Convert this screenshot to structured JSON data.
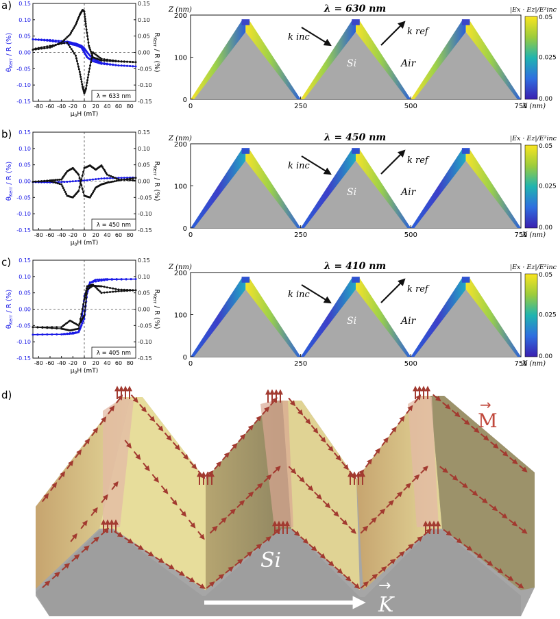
{
  "panel_labels": [
    "a)",
    "b)",
    "c)",
    "d)"
  ],
  "colors": {
    "blue": "#1a1ae6",
    "black": "#111111",
    "si_gray": "#a7a7a7",
    "arrow_red": "#b0443a"
  },
  "kerr_plots": {
    "left_axis_label": "θKerr / R (%)",
    "left_axis_main": "θ",
    "left_axis_sub": "Kerr",
    "left_axis_rest": " / R (%)",
    "right_axis_main": "R",
    "right_axis_sub": "Kerr",
    "right_axis_rest": " / R (%)",
    "x_label_main": "μ",
    "x_label_sub": "0",
    "x_label_rest": "H (mT)",
    "y_ticks": [
      "0.15",
      "0.10",
      "0.05",
      "0.00",
      "-0.05",
      "-0.10",
      "-0.15"
    ],
    "x_ticks": [
      "-80",
      "-60",
      "-40",
      "-20",
      "0",
      "20",
      "40",
      "60",
      "80"
    ],
    "wavelength_labels": [
      "λ = 633 nm",
      "λ = 450 nm",
      "λ = 405 nm"
    ]
  },
  "chart_data": [
    {
      "type": "line",
      "panel": "a",
      "title": "λ = 633 nm",
      "xlim": [
        -90,
        90
      ],
      "ylim": [
        -0.15,
        0.15
      ],
      "series": [
        {
          "name": "θKerr/R (blue, up sweep)",
          "color": "#1a1ae6",
          "x": [
            -90,
            -60,
            -30,
            -15,
            -5,
            0,
            5,
            15,
            30,
            60,
            90
          ],
          "y": [
            0.04,
            0.035,
            0.028,
            0.022,
            0.015,
            0.0,
            -0.015,
            -0.027,
            -0.035,
            -0.04,
            -0.043
          ]
        },
        {
          "name": "θKerr/R (blue, down sweep)",
          "color": "#1a1ae6",
          "x": [
            90,
            60,
            30,
            15,
            5,
            0,
            -5,
            -15,
            -30,
            -60,
            -90
          ],
          "y": [
            -0.043,
            -0.04,
            -0.032,
            -0.02,
            0.0,
            0.012,
            0.02,
            0.027,
            0.033,
            0.038,
            0.04
          ]
        },
        {
          "name": "RKerr/R (black, up sweep)",
          "color": "#111111",
          "x": [
            -90,
            -60,
            -40,
            -25,
            -15,
            -8,
            -3,
            0,
            3,
            8,
            15,
            30,
            60,
            90
          ],
          "y": [
            0.008,
            0.015,
            0.03,
            0.055,
            0.085,
            0.115,
            0.13,
            0.125,
            0.08,
            0.02,
            -0.015,
            -0.025,
            -0.028,
            -0.03
          ]
        },
        {
          "name": "RKerr/R (black, down sweep)",
          "color": "#111111",
          "x": [
            90,
            60,
            30,
            15,
            8,
            3,
            0,
            -3,
            -8,
            -15,
            -30,
            -60,
            -90
          ],
          "y": [
            -0.03,
            -0.027,
            -0.02,
            0.0,
            -0.06,
            -0.11,
            -0.125,
            -0.105,
            -0.06,
            -0.01,
            0.03,
            0.02,
            0.01
          ]
        }
      ]
    },
    {
      "type": "line",
      "panel": "b",
      "title": "λ = 450 nm",
      "xlim": [
        -90,
        90
      ],
      "ylim": [
        -0.15,
        0.15
      ],
      "series": [
        {
          "name": "θKerr/R (blue)",
          "color": "#1a1ae6",
          "x": [
            -90,
            -60,
            -30,
            0,
            30,
            60,
            90
          ],
          "y": [
            -0.003,
            -0.004,
            -0.002,
            0.002,
            0.008,
            0.01,
            0.011
          ]
        },
        {
          "name": "RKerr/R (black, up sweep)",
          "color": "#111111",
          "x": [
            -90,
            -60,
            -40,
            -30,
            -20,
            -10,
            0,
            10,
            20,
            30,
            40,
            60,
            90
          ],
          "y": [
            -0.002,
            0.0,
            -0.01,
            -0.045,
            -0.05,
            -0.03,
            0.04,
            0.048,
            0.035,
            0.048,
            0.02,
            0.005,
            0.002
          ]
        },
        {
          "name": "RKerr/R (black, down sweep)",
          "color": "#111111",
          "x": [
            90,
            60,
            40,
            30,
            20,
            10,
            0,
            -10,
            -20,
            -30,
            -40,
            -60,
            -90
          ],
          "y": [
            0.01,
            0.002,
            -0.005,
            -0.01,
            -0.02,
            -0.05,
            -0.045,
            0.02,
            0.04,
            0.03,
            0.005,
            0.002,
            -0.002
          ]
        }
      ]
    },
    {
      "type": "line",
      "panel": "c",
      "title": "λ = 405 nm",
      "xlim": [
        -90,
        90
      ],
      "ylim": [
        -0.15,
        0.15
      ],
      "series": [
        {
          "name": "θKerr/R (blue, up sweep)",
          "color": "#1a1ae6",
          "x": [
            -90,
            -40,
            -10,
            0,
            5,
            10,
            20,
            40,
            90
          ],
          "y": [
            -0.078,
            -0.077,
            -0.07,
            -0.03,
            0.05,
            0.08,
            0.09,
            0.092,
            0.092
          ]
        },
        {
          "name": "θKerr/R (blue, down sweep)",
          "color": "#1a1ae6",
          "x": [
            90,
            40,
            10,
            0,
            -5,
            -10,
            -20,
            -40,
            -90
          ],
          "y": [
            0.092,
            0.09,
            0.082,
            0.04,
            -0.05,
            -0.07,
            -0.075,
            -0.077,
            -0.078
          ]
        },
        {
          "name": "RKerr/R (black, up sweep)",
          "color": "#111111",
          "x": [
            -90,
            -40,
            -25,
            -10,
            0,
            5,
            15,
            30,
            60,
            90
          ],
          "y": [
            -0.055,
            -0.06,
            -0.065,
            -0.06,
            0.03,
            0.07,
            0.075,
            0.05,
            0.055,
            0.058
          ]
        },
        {
          "name": "RKerr/R (black, down sweep)",
          "color": "#111111",
          "x": [
            90,
            60,
            30,
            15,
            5,
            0,
            -10,
            -25,
            -40,
            -90
          ],
          "y": [
            0.058,
            0.06,
            0.07,
            0.072,
            0.06,
            -0.02,
            -0.05,
            -0.035,
            -0.055,
            -0.055
          ]
        }
      ]
    }
  ],
  "field_maps": {
    "z_axis_label": "Z (nm)",
    "x_axis_label": "X (nm)",
    "z_ticks": [
      "0",
      "100",
      "200"
    ],
    "x_ticks": [
      "0",
      "250",
      "500",
      "750"
    ],
    "colorbar_label": "|Ex · Ez|/E²inc",
    "colorbar_ticks": [
      "0.05",
      "0.025",
      "0.00"
    ],
    "k_inc": "k inc",
    "k_ref": "k ref",
    "si_label": "Si",
    "air_label": "Air",
    "titles": [
      "λ = 630 nm",
      "λ = 450 nm",
      "λ = 410 nm"
    ]
  },
  "panel_d": {
    "m_label": "M",
    "si_label": "Si",
    "k_label": "K"
  }
}
